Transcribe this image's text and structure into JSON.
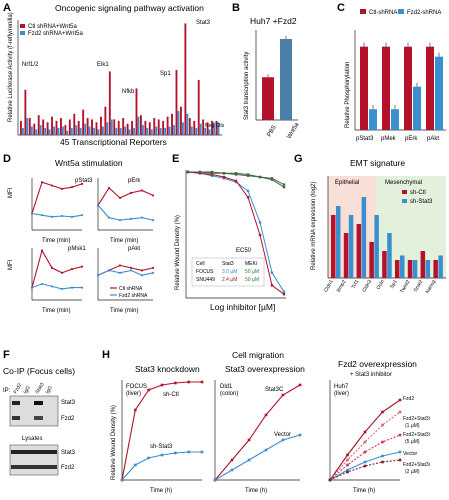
{
  "colors": {
    "red": "#b3122a",
    "blue": "#3a8fd0",
    "green": "#2f7d2f",
    "ctl_bg": "#f3c7b8",
    "stat3_bg": "#cfe6c4"
  },
  "panelA": {
    "letter": "A",
    "title": "Oncogenic signaling pathway activation",
    "ylabel": "Relative Luciferase Activity (f-refly/renilla)",
    "xlabel": "45 Transcriptional Reporters",
    "legend": [
      "Ctl shRNA+Wnt5a",
      "Fzd2 shRNA+Wnt5a"
    ],
    "annotations": [
      "Nrf1/2",
      "Elk1",
      "Nfkb",
      "Sp1",
      "Stat3",
      "Neg Ctls"
    ]
  },
  "panelB": {
    "letter": "B",
    "title": "Huh7 +Fzd2",
    "ylabel": "Stat3 transcription activity",
    "categories": [
      "PBS",
      "Wnt5a"
    ]
  },
  "panelC": {
    "letter": "C",
    "ylabel": "Relative Phosphorylation",
    "legend": [
      "Ctl-shRNA",
      "Fzd2-shRNA"
    ],
    "categories": [
      "pStat3",
      "pMek",
      "pErk",
      "pAkt"
    ]
  },
  "panelD": {
    "letter": "D",
    "title": "Wnt5a stimulation",
    "ylabel": "MFI",
    "xlabel": "Time (min)",
    "subplots": [
      "pStat3",
      "pErk",
      "pMsk1",
      "pAkt"
    ],
    "legend": [
      "Ctl shRNA",
      "Fzd2 shRNA"
    ]
  },
  "panelE": {
    "letter": "E",
    "ylabel": "Relative Wound Density (%)",
    "xlabel": "Log inhibitor [µM]",
    "ec_label": "EC50",
    "table_header": [
      "Cell",
      "Stat3",
      "MEKi"
    ],
    "table_rows": [
      [
        "FOCUS",
        "3.0 µM",
        "50 µM"
      ],
      [
        "SNU449",
        "2.4 µM",
        "50 µM"
      ]
    ]
  },
  "panelF": {
    "letter": "F",
    "title": "Co-IP (Focus cells)",
    "ip_label": "IP:",
    "lanes": [
      "Fzd2",
      "IgG",
      "Stat3",
      "IgG"
    ],
    "blots": [
      "Stat3",
      "Fzd2"
    ],
    "lysates_label": "Lysates",
    "lysate_blots": [
      "Stat3",
      "Fzd2"
    ]
  },
  "panelG": {
    "letter": "G",
    "title": "EMT signature",
    "group_labels": [
      "Epithelial",
      "Mesenchymal"
    ],
    "ylabel": "Relative mRNA expression (log2)",
    "legend": [
      "sh-Ctl",
      "sh-Stat3"
    ],
    "categories": [
      "Cldn1",
      "Bmp2",
      "Tcf1",
      "Cldn3",
      "Ocln",
      "Sp1",
      "Twist2",
      "Snai2",
      "Nanog"
    ]
  },
  "panelH": {
    "letter": "H",
    "title": "Cell migration",
    "sub1": {
      "title": "Stat3 knockdown",
      "cell": "FOCUS",
      "tissue": "(liver)",
      "label_top": "sh-Ctl",
      "label_bottom": "sh-Stat3"
    },
    "sub2": {
      "title": "Stat3 overexpression",
      "cell": "Dld1",
      "tissue": "(colon)",
      "label_top": "Stat3C",
      "label_bottom": "Vector"
    },
    "sub3": {
      "title": "Fzd2 overexpression",
      "subtitle": "+ Stat3 inhibitor",
      "cell": "Huh7",
      "tissue": "(liver)",
      "labels": [
        "Fzd2",
        "Fzd2+Stat3i",
        "(1 µM)",
        "Fzd2+Stat3i",
        "(5 µM)",
        "Vector",
        "Fzd2+Stat3i",
        "(2 µM)"
      ]
    },
    "ylabel": "Relative Wound Density (%)",
    "xlabel": "Time (h)"
  },
  "chart_data": [
    {
      "type": "bar",
      "panel": "A",
      "series": [
        {
          "name": "Ctl shRNA+Wnt5a",
          "values": [
            1.0,
            3.2,
            1.2,
            0.8,
            1.4,
            1.1,
            0.9,
            1.3,
            1.0,
            1.2,
            0.7,
            1.1,
            1.5,
            1.0,
            1.8,
            1.2,
            1.1,
            0.9,
            1.3,
            2.0,
            4.5,
            1.1,
            1.0,
            1.2,
            0.8,
            1.0,
            3.3,
            1.4,
            1.0,
            0.9,
            1.2,
            1.1,
            1.0,
            1.3,
            1.5,
            4.6,
            2.0,
            7.9,
            1.2,
            1.0,
            3.9,
            1.1,
            0.9,
            1.0,
            1.0
          ]
        },
        {
          "name": "Fzd2 shRNA+Wnt5a",
          "values": [
            0.5,
            1.2,
            0.6,
            0.4,
            0.7,
            0.5,
            0.4,
            0.6,
            0.5,
            0.6,
            0.3,
            0.5,
            0.7,
            0.5,
            0.8,
            0.6,
            0.5,
            0.4,
            0.6,
            0.9,
            1.1,
            0.5,
            0.5,
            0.6,
            0.4,
            0.5,
            1.3,
            0.7,
            0.5,
            0.4,
            0.6,
            0.5,
            0.5,
            0.6,
            0.7,
            1.7,
            0.9,
            1.5,
            0.6,
            0.5,
            0.8,
            0.5,
            0.4,
            0.9,
            0.9
          ]
        }
      ],
      "ylim": [
        0,
        8
      ]
    },
    {
      "type": "bar",
      "panel": "B",
      "categories": [
        "PBS",
        "Wnt5a"
      ],
      "values": [
        19,
        36
      ],
      "ylim": [
        0,
        40
      ]
    },
    {
      "type": "bar",
      "panel": "C",
      "categories": [
        "pStat3",
        "pMek",
        "pErk",
        "pAkt"
      ],
      "series": [
        {
          "name": "Ctl-shRNA",
          "values": [
            1.0,
            1.0,
            1.0,
            1.0
          ]
        },
        {
          "name": "Fzd2-shRNA",
          "values": [
            0.25,
            0.25,
            0.52,
            0.88
          ]
        }
      ],
      "ylim": [
        0,
        1.2
      ]
    },
    {
      "type": "line",
      "panel": "D",
      "x": [
        0,
        15,
        30,
        45,
        60,
        120
      ],
      "series": [
        {
          "name": "pStat3 Ctl shRNA",
          "values": [
            1.0,
            2.9,
            2.7,
            2.5,
            2.6,
            2.8
          ]
        },
        {
          "name": "pStat3 Fzd2 shRNA",
          "values": [
            1.0,
            0.9,
            0.8,
            0.85,
            0.8,
            0.9
          ]
        },
        {
          "name": "pErk Ctl shRNA",
          "values": [
            1.0,
            1.7,
            1.3,
            1.5,
            1.6,
            1.4
          ]
        },
        {
          "name": "pErk Fzd2 shRNA",
          "values": [
            1.0,
            0.5,
            0.4,
            0.45,
            0.5,
            0.4
          ]
        },
        {
          "name": "pMsk1 Ctl shRNA",
          "values": [
            1.0,
            4.0,
            2.6,
            2.2,
            2.5,
            2.7
          ]
        },
        {
          "name": "pMsk1 Fzd2 shRNA",
          "values": [
            1.0,
            1.3,
            1.1,
            0.9,
            1.0,
            1.0
          ]
        },
        {
          "name": "pAkt Ctl shRNA",
          "values": [
            1.0,
            1.2,
            1.4,
            1.3,
            1.2,
            1.3
          ]
        },
        {
          "name": "pAkt Fzd2 shRNA",
          "values": [
            1.0,
            1.2,
            1.1,
            1.2,
            1.0,
            1.1
          ]
        }
      ]
    },
    {
      "type": "scatter",
      "panel": "E",
      "x": [
        -2,
        -1.5,
        -1,
        -0.5,
        0,
        0.5,
        1,
        1.5,
        2
      ],
      "series": [
        {
          "name": "Stat3 FOCUS",
          "values": [
            100,
            99,
            97,
            95,
            92,
            85,
            60,
            20,
            5
          ]
        },
        {
          "name": "Stat3 SNU449",
          "values": [
            100,
            99,
            98,
            96,
            93,
            80,
            50,
            10,
            3
          ]
        },
        {
          "name": "MEKi FOCUS",
          "values": [
            100,
            100,
            99,
            99,
            98,
            97,
            96,
            95,
            90
          ]
        },
        {
          "name": "MEKi SNU449",
          "values": [
            100,
            100,
            100,
            99,
            99,
            98,
            96,
            94,
            88
          ]
        }
      ],
      "ylim": [
        0,
        100
      ]
    },
    {
      "type": "bar",
      "panel": "G",
      "categories": [
        "Cldn1",
        "Bmp2",
        "Tcf1",
        "Cldn3",
        "Ocln",
        "Sp1",
        "Twist2",
        "Snai2",
        "Nanog"
      ],
      "series": [
        {
          "name": "sh-Ctl",
          "values": [
            7,
            5,
            6,
            4,
            3,
            2,
            2,
            3,
            2
          ]
        },
        {
          "name": "sh-Stat3",
          "values": [
            8,
            7,
            9,
            7,
            5,
            2.5,
            2,
            2,
            2.5
          ]
        }
      ],
      "ylim": [
        0,
        10
      ]
    },
    {
      "type": "line",
      "panel": "H1",
      "x": [
        0,
        10,
        20,
        30,
        40,
        50,
        60
      ],
      "series": [
        {
          "name": "sh-Ctl",
          "values": [
            0,
            70,
            90,
            95,
            97,
            98,
            98
          ]
        },
        {
          "name": "sh-Stat3",
          "values": [
            0,
            15,
            22,
            25,
            27,
            28,
            28
          ]
        }
      ],
      "ylim": [
        0,
        100
      ]
    },
    {
      "type": "line",
      "panel": "H2",
      "x": [
        0,
        20,
        40,
        60,
        80,
        100
      ],
      "series": [
        {
          "name": "Stat3C",
          "values": [
            0,
            20,
            40,
            65,
            85,
            95
          ]
        },
        {
          "name": "Vector",
          "values": [
            0,
            10,
            20,
            30,
            40,
            45
          ]
        }
      ],
      "ylim": [
        0,
        100
      ]
    },
    {
      "type": "line",
      "panel": "H3",
      "x": [
        0,
        6,
        12,
        18,
        24
      ],
      "series": [
        {
          "name": "Fzd2",
          "values": [
            0,
            25,
            48,
            68,
            80
          ]
        },
        {
          "name": "Fzd2+Stat3i (1 µM)",
          "values": [
            0,
            20,
            38,
            55,
            68
          ]
        },
        {
          "name": "Fzd2+Stat3i (5 µM)",
          "values": [
            0,
            15,
            28,
            38,
            45
          ]
        },
        {
          "name": "Vector",
          "values": [
            0,
            10,
            18,
            24,
            28
          ]
        },
        {
          "name": "Fzd2+Stat3i (2 µM)",
          "values": [
            0,
            8,
            14,
            18,
            20
          ]
        }
      ],
      "ylim": [
        0,
        100
      ]
    }
  ]
}
